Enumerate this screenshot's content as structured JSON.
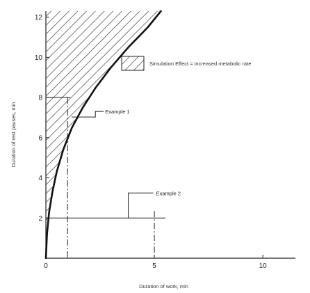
{
  "chart_data": {
    "type": "line",
    "title": "",
    "xlabel": "Duration of work, min",
    "ylabel": "Duration of rest pauses, min",
    "xlim": [
      0,
      11.5
    ],
    "ylim": [
      0,
      12.3
    ],
    "x_ticks": [
      0,
      5,
      10
    ],
    "y_ticks": [
      2,
      4,
      6,
      8,
      10,
      12
    ],
    "curve": {
      "x": [
        0,
        0.05,
        0.15,
        0.3,
        0.5,
        0.8,
        1.2,
        1.7,
        2.3,
        3.0,
        3.8,
        4.7,
        5.3
      ],
      "y": [
        0,
        1.2,
        2.3,
        3.3,
        4.3,
        5.4,
        6.5,
        7.5,
        8.5,
        9.5,
        10.5,
        11.5,
        12.3
      ]
    },
    "legend": {
      "text": "Simulation Effect = increased metabolic rate",
      "fill": "hatched"
    },
    "annotations": [
      {
        "text": "Example 1",
        "x": 1,
        "y": 8
      },
      {
        "text": "Example 2",
        "x": 5,
        "y": 2
      }
    ],
    "colors": {
      "curve": "#111111",
      "hatch": "#555555",
      "axes": "#222222"
    }
  }
}
